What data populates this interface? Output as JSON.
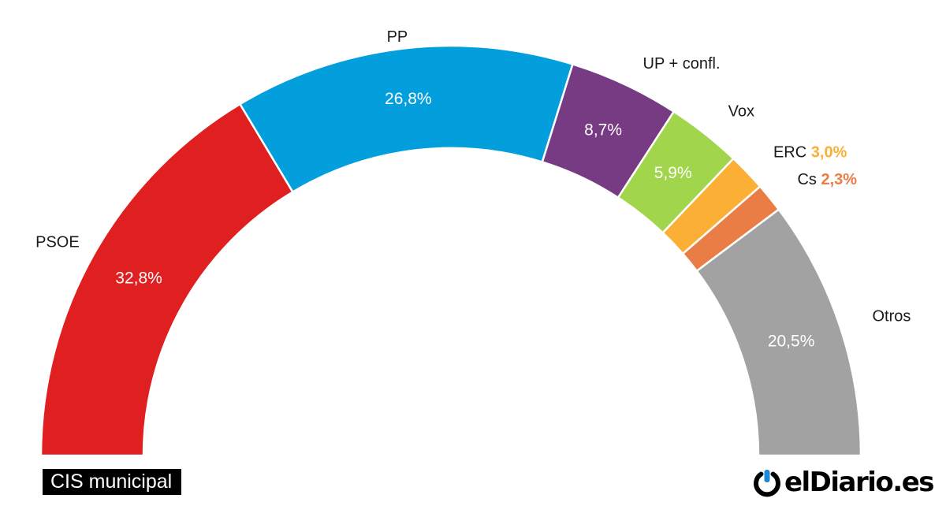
{
  "chart_data": {
    "type": "pie",
    "subtype": "half-donut",
    "series": [
      {
        "name": "PSOE",
        "value": 32.8,
        "value_label": "32,8%",
        "color": "#e02020",
        "label_position": "outside-left"
      },
      {
        "name": "PP",
        "value": 26.8,
        "value_label": "26,8%",
        "color": "#039fdd",
        "label_position": "outside-top"
      },
      {
        "name": "UP + confl.",
        "value": 8.7,
        "value_label": "8,7%",
        "color": "#773b83",
        "label_position": "outside-top-right"
      },
      {
        "name": "Vox",
        "value": 5.9,
        "value_label": "5,9%",
        "color": "#a0d54c",
        "label_position": "outside-right"
      },
      {
        "name": "ERC",
        "value": 3.0,
        "value_label": "3,0%",
        "color": "#fbaf34",
        "label_position": "external-with-value"
      },
      {
        "name": "Cs",
        "value": 2.3,
        "value_label": "2,3%",
        "color": "#ea7d45",
        "label_position": "external-with-value"
      },
      {
        "name": "Otros",
        "value": 20.5,
        "value_label": "20,5%",
        "color": "#a2a2a2",
        "label_position": "outside-right"
      }
    ]
  },
  "source": {
    "label": "CIS municipal"
  },
  "brand": {
    "name": "elDiario.es",
    "logo_icon": "eldiario-power-mark-icon"
  }
}
